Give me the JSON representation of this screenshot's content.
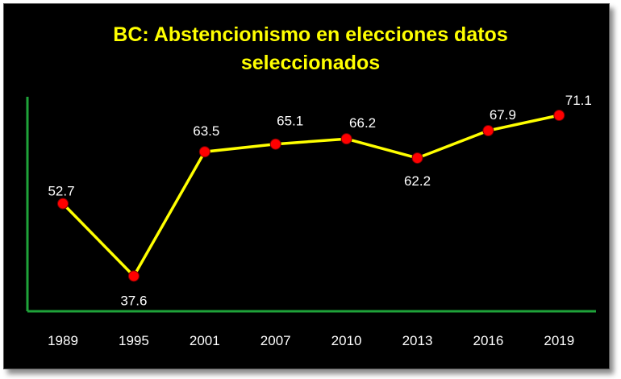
{
  "chart_data": {
    "type": "line",
    "title": "BC: Abstencionismo en elecciones datos seleccionados",
    "title_lines": [
      "BC: Abstencionismo en elecciones datos",
      "seleccionados"
    ],
    "categories": [
      "1989",
      "1995",
      "2001",
      "2007",
      "2010",
      "2013",
      "2016",
      "2019"
    ],
    "series": [
      {
        "values": [
          52.7,
          37.6,
          63.5,
          65.1,
          66.2,
          62.2,
          67.9,
          71.1
        ]
      }
    ],
    "data_labels": [
      "52.7",
      "37.6",
      "63.5",
      "65.1",
      "66.2",
      "62.2",
      "67.9",
      "71.1"
    ],
    "xlabel": "",
    "ylabel": "",
    "grid": false,
    "legend": "none",
    "colors": {
      "background": "#000000",
      "title": "#ffff00",
      "line": "#ffff00",
      "marker": "#ff0000",
      "axis": "#1fa33a",
      "text": "#ffffff"
    }
  }
}
